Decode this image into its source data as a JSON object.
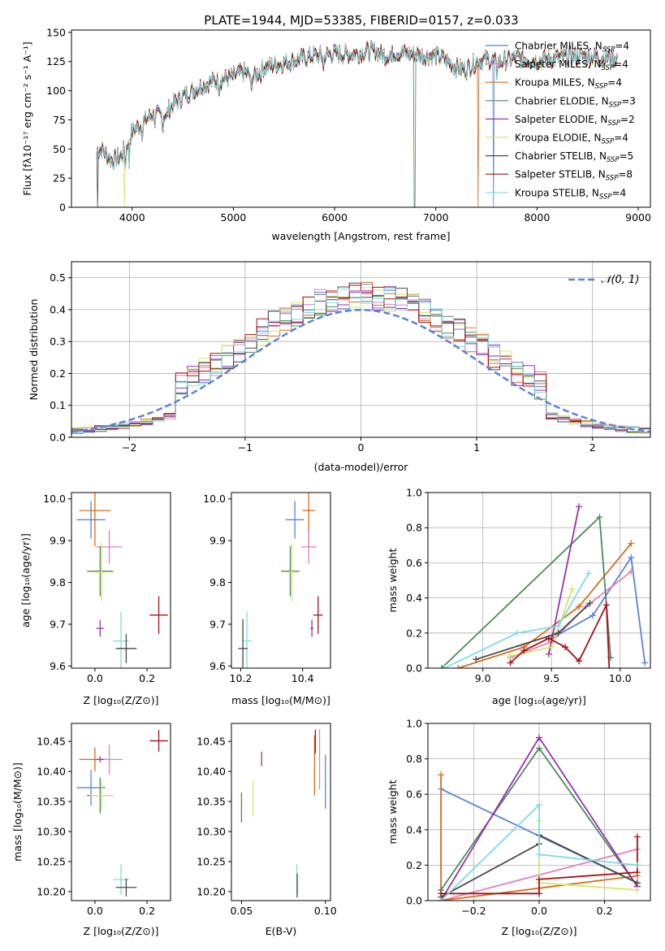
{
  "title": "PLATE=1944, MJD=53385, FIBERID=0157, z=0.033",
  "colors": {
    "Chabrier MILES": "#5b84d8",
    "Salpeter MILES": "#e37fbf",
    "Kroupa MILES": "#d86c1a",
    "Chabrier ELODIE": "#4f8a5b",
    "Salpeter ELODIE": "#9a2fb5",
    "Kroupa ELODIE": "#d8e56a",
    "Chabrier STELIB": "#4a4a4a",
    "Salpeter STELIB": "#a6111a",
    "Kroupa STELIB": "#7fdce0",
    "normal": "#5b84d8"
  },
  "chart_data": [
    {
      "id": "spectrum",
      "type": "line",
      "title": "PLATE=1944, MJD=53385, FIBERID=0157, z=0.033",
      "xlabel": "wavelength [Angstrom, rest frame]",
      "ylabel": "Flux [f",
      "ylabel_full": "Flux [fλ10⁻¹⁷ erg cm⁻² s⁻¹ A⁻¹]",
      "xlim": [
        3400,
        9120
      ],
      "ylim": [
        0,
        152
      ],
      "xticks": [
        4000,
        5000,
        6000,
        7000,
        8000,
        9000
      ],
      "yticks": [
        0,
        25,
        50,
        75,
        100,
        125,
        150
      ],
      "legend_position": "right",
      "series": [
        {
          "name": "Chabrier MILES",
          "label_main": "Chabrier MILES, N",
          "sub": "SSP",
          "n": "=4"
        },
        {
          "name": "Salpeter MILES",
          "label_main": "Salpeter MILES, N",
          "sub": "SSP",
          "n": "=4"
        },
        {
          "name": "Kroupa MILES",
          "label_main": "Kroupa MILES, N",
          "sub": "SSP",
          "n": "=4"
        },
        {
          "name": "Chabrier ELODIE",
          "label_main": "Chabrier ELODIE, N",
          "sub": "SSP",
          "n": "=3"
        },
        {
          "name": "Salpeter ELODIE",
          "label_main": "Salpeter ELODIE, N",
          "sub": "SSP",
          "n": "=2"
        },
        {
          "name": "Kroupa ELODIE",
          "label_main": "Kroupa ELODIE, N",
          "sub": "SSP",
          "n": "=4"
        },
        {
          "name": "Chabrier STELIB",
          "label_main": "Chabrier STELIB, N",
          "sub": "SSP",
          "n": "=5"
        },
        {
          "name": "Salpeter STELIB",
          "label_main": "Salpeter STELIB, N",
          "sub": "SSP",
          "n": "=8"
        },
        {
          "name": "Kroupa STELIB",
          "label_main": "Kroupa STELIB, N",
          "sub": "SSP",
          "n": "=4"
        }
      ],
      "continuum": [
        [
          3650,
          48
        ],
        [
          3700,
          50
        ],
        [
          3800,
          40
        ],
        [
          3900,
          45
        ],
        [
          4000,
          65
        ],
        [
          4100,
          72
        ],
        [
          4200,
          80
        ],
        [
          4300,
          78
        ],
        [
          4400,
          88
        ],
        [
          4500,
          95
        ],
        [
          4600,
          100
        ],
        [
          4700,
          105
        ],
        [
          4800,
          108
        ],
        [
          4900,
          110
        ],
        [
          5000,
          112
        ],
        [
          5100,
          116
        ],
        [
          5200,
          112
        ],
        [
          5300,
          120
        ],
        [
          5400,
          122
        ],
        [
          5500,
          124
        ],
        [
          5600,
          126
        ],
        [
          5700,
          128
        ],
        [
          5800,
          130
        ],
        [
          5900,
          130
        ],
        [
          6000,
          132
        ],
        [
          6100,
          131
        ],
        [
          6200,
          132
        ],
        [
          6300,
          133
        ],
        [
          6400,
          134
        ],
        [
          6500,
          130
        ],
        [
          6600,
          133
        ],
        [
          6700,
          132
        ],
        [
          6800,
          131
        ],
        [
          6900,
          130
        ],
        [
          7000,
          130
        ],
        [
          7100,
          126
        ],
        [
          7200,
          120
        ],
        [
          7300,
          118
        ],
        [
          7400,
          125
        ],
        [
          7500,
          127
        ],
        [
          7600,
          124
        ],
        [
          7700,
          126
        ],
        [
          7800,
          128
        ],
        [
          7900,
          127
        ],
        [
          8000,
          126
        ],
        [
          8200,
          128
        ],
        [
          8400,
          130
        ],
        [
          8600,
          129
        ],
        [
          8800,
          128
        ]
      ],
      "absorption_lines": [
        [
          3934,
          20
        ],
        [
          3969,
          22
        ],
        [
          4102,
          10
        ],
        [
          4227,
          6
        ],
        [
          4305,
          10
        ],
        [
          4340,
          8
        ],
        [
          4861,
          7
        ],
        [
          5175,
          18
        ],
        [
          5270,
          6
        ],
        [
          5890,
          12
        ],
        [
          6563,
          6
        ],
        [
          7600,
          10
        ]
      ],
      "drops": [
        {
          "series": "Kroupa ELODIE",
          "x": 3920
        },
        {
          "series": "Chabrier ELODIE",
          "x": 6790
        },
        {
          "series": "Kroupa MILES",
          "x": 7420
        },
        {
          "series": "Chabrier MILES",
          "x": 7570
        },
        {
          "series": "Chabrier STELIB",
          "x": 3660
        }
      ]
    },
    {
      "id": "residuals",
      "type": "histogram",
      "xlabel": "(data-model)/error",
      "ylabel": "Normed distribution",
      "xlim": [
        -2.5,
        2.5
      ],
      "ylim": [
        0,
        0.55
      ],
      "xticks": [
        -2,
        -1,
        0,
        1,
        2
      ],
      "yticks": [
        0.0,
        0.1,
        0.2,
        0.3,
        0.4,
        0.5
      ],
      "legend_label": "𝒩(0, 1)",
      "legend_position": "top-right",
      "grid": true,
      "bin_width": 0.1
    },
    {
      "id": "z_age",
      "type": "scatter",
      "xlabel": "Z [log",
      "xlabel_full": "Z [log₁₀(Z/Z⊙)]",
      "ylabel": "age [log₁₀(age/yr)]",
      "xlim": [
        -0.09,
        0.29
      ],
      "ylim": [
        9.595,
        10.015
      ],
      "xticks": [
        0.0,
        0.2
      ],
      "yticks": [
        9.6,
        9.7,
        9.8,
        9.9,
        10.0
      ],
      "points": [
        {
          "series": "Chabrier MILES",
          "x": -0.015,
          "y": 9.95,
          "xerr": 0.055,
          "yerr": 0.045
        },
        {
          "series": "Kroupa MILES",
          "x": 0.0,
          "y": 9.972,
          "xerr": 0.06,
          "yerr": 0.085
        },
        {
          "series": "Salpeter MILES",
          "x": 0.055,
          "y": 9.885,
          "xerr": 0.05,
          "yerr": 0.04
        },
        {
          "series": "Chabrier ELODIE",
          "x": 0.02,
          "y": 9.827,
          "xerr": 0.05,
          "yerr": 0.06
        },
        {
          "series": "Kroupa ELODIE",
          "x": 0.025,
          "y": 9.825,
          "xerr": 0.045,
          "yerr": 0.07
        },
        {
          "series": "Salpeter ELODIE",
          "x": 0.02,
          "y": 9.69,
          "xerr": 0.015,
          "yerr": 0.02
        },
        {
          "series": "Kroupa STELIB",
          "x": 0.1,
          "y": 9.66,
          "xerr": 0.03,
          "yerr": 0.07
        },
        {
          "series": "Chabrier STELIB",
          "x": 0.12,
          "y": 9.642,
          "xerr": 0.04,
          "yerr": 0.035
        },
        {
          "series": "Salpeter STELIB",
          "x": 0.245,
          "y": 9.722,
          "xerr": 0.035,
          "yerr": 0.045
        }
      ]
    },
    {
      "id": "mass_age",
      "type": "scatter",
      "xlabel": "mass [log₁₀(M/M⊙)]",
      "xlim": [
        10.17,
        10.49
      ],
      "ylim": [
        9.595,
        10.015
      ],
      "xticks": [
        10.2,
        10.4
      ],
      "yticks": [
        9.6,
        9.7,
        9.8,
        9.9,
        10.0
      ],
      "points": [
        {
          "series": "Chabrier MILES",
          "x": 10.375,
          "y": 9.95,
          "xerr": 0.03,
          "yerr": 0.045
        },
        {
          "series": "Kroupa MILES",
          "x": 10.42,
          "y": 9.972,
          "xerr": 0.02,
          "yerr": 0.085
        },
        {
          "series": "Salpeter MILES",
          "x": 10.42,
          "y": 9.885,
          "xerr": 0.025,
          "yerr": 0.04
        },
        {
          "series": "Chabrier ELODIE",
          "x": 10.36,
          "y": 9.827,
          "xerr": 0.03,
          "yerr": 0.06
        },
        {
          "series": "Kroupa ELODIE",
          "x": 10.365,
          "y": 9.825,
          "xerr": 0.02,
          "yerr": 0.07
        },
        {
          "series": "Salpeter ELODIE",
          "x": 10.43,
          "y": 9.69,
          "xerr": 0.005,
          "yerr": 0.02
        },
        {
          "series": "Kroupa STELIB",
          "x": 10.22,
          "y": 9.66,
          "xerr": 0.015,
          "yerr": 0.07
        },
        {
          "series": "Chabrier STELIB",
          "x": 10.207,
          "y": 9.642,
          "xerr": 0.015,
          "yerr": 0.07
        },
        {
          "series": "Salpeter STELIB",
          "x": 10.45,
          "y": 9.722,
          "xerr": 0.015,
          "yerr": 0.045
        }
      ]
    },
    {
      "id": "age_weight",
      "type": "line",
      "xlabel": "age [log₁₀(age/yr)]",
      "ylabel": "mass weight",
      "xlim": [
        8.6,
        10.22
      ],
      "ylim": [
        0,
        1.0
      ],
      "xticks": [
        9.0,
        9.5,
        10.0
      ],
      "yticks": [
        0.0,
        0.2,
        0.4,
        0.6,
        0.8,
        1.0
      ],
      "grid": true,
      "series": [
        {
          "name": "Chabrier MILES",
          "x": [
            9.5,
            9.8,
            10.08,
            10.18
          ],
          "y": [
            0.17,
            0.3,
            0.63,
            0.03
          ]
        },
        {
          "name": "Salpeter MILES",
          "x": [
            9.2,
            9.5,
            9.75,
            10.08
          ],
          "y": [
            0.06,
            0.15,
            0.35,
            0.55
          ]
        },
        {
          "name": "Kroupa MILES",
          "x": [
            8.82,
            9.3,
            9.7,
            10.08
          ],
          "y": [
            0.0,
            0.12,
            0.35,
            0.71
          ]
        },
        {
          "name": "Chabrier ELODIE",
          "x": [
            8.7,
            9.85,
            9.93
          ],
          "y": [
            0.0,
            0.86,
            0.06
          ]
        },
        {
          "name": "Salpeter ELODIE",
          "x": [
            9.48,
            9.7
          ],
          "y": [
            0.08,
            0.92
          ]
        },
        {
          "name": "Kroupa ELODIE",
          "x": [
            9.2,
            9.5,
            9.65
          ],
          "y": [
            0.07,
            0.12,
            0.45
          ]
        },
        {
          "name": "Chabrier STELIB",
          "x": [
            8.95,
            9.55,
            9.78
          ],
          "y": [
            0.05,
            0.2,
            0.37
          ]
        },
        {
          "name": "Salpeter STELIB",
          "x": [
            9.2,
            9.3,
            9.48,
            9.6,
            9.7,
            9.9,
            9.92
          ],
          "y": [
            0.03,
            0.1,
            0.17,
            0.12,
            0.04,
            0.36,
            0.0
          ]
        },
        {
          "name": "Kroupa STELIB",
          "x": [
            8.72,
            9.25,
            9.55,
            9.77
          ],
          "y": [
            0.0,
            0.2,
            0.24,
            0.54
          ]
        }
      ]
    },
    {
      "id": "z_mass",
      "type": "scatter",
      "xlabel": "Z [log₁₀(Z/Z⊙)]",
      "ylabel": "mass [log₁₀(M/M⊙)]",
      "xlim": [
        -0.09,
        0.29
      ],
      "ylim": [
        10.185,
        10.48
      ],
      "xticks": [
        0.0,
        0.2
      ],
      "yticks": [
        10.2,
        10.25,
        10.3,
        10.35,
        10.4,
        10.45
      ],
      "points": [
        {
          "series": "Chabrier MILES",
          "x": -0.015,
          "y": 10.373,
          "xerr": 0.055,
          "yerr": 0.03
        },
        {
          "series": "Kroupa MILES",
          "x": 0.0,
          "y": 10.42,
          "xerr": 0.06,
          "yerr": 0.02
        },
        {
          "series": "Salpeter MILES",
          "x": 0.055,
          "y": 10.42,
          "xerr": 0.05,
          "yerr": 0.025
        },
        {
          "series": "Salpeter ELODIE",
          "x": 0.02,
          "y": 10.42,
          "xerr": 0.015,
          "yerr": 0.005
        },
        {
          "series": "Chabrier ELODIE",
          "x": 0.02,
          "y": 10.36,
          "xerr": 0.05,
          "yerr": 0.03
        },
        {
          "series": "Kroupa ELODIE",
          "x": 0.025,
          "y": 10.36,
          "xerr": 0.045,
          "yerr": 0.025
        },
        {
          "series": "Kroupa STELIB",
          "x": 0.1,
          "y": 10.22,
          "xerr": 0.03,
          "yerr": 0.025
        },
        {
          "series": "Chabrier STELIB",
          "x": 0.12,
          "y": 10.207,
          "xerr": 0.04,
          "yerr": 0.015
        },
        {
          "series": "Salpeter STELIB",
          "x": 0.245,
          "y": 10.451,
          "xerr": 0.035,
          "yerr": 0.018
        }
      ]
    },
    {
      "id": "ebv_mass",
      "type": "scatter",
      "xlabel": "E(B-V)",
      "xlim": [
        0.044,
        0.103
      ],
      "ylim": [
        10.185,
        10.48
      ],
      "xticks": [
        0.05,
        0.1
      ],
      "yticks": [
        10.2,
        10.25,
        10.3,
        10.35,
        10.4,
        10.45
      ],
      "points": [
        {
          "series": "Chabrier ELODIE",
          "x": 0.05,
          "y": 10.34,
          "yerr": 0.025
        },
        {
          "series": "Kroupa ELODIE",
          "x": 0.057,
          "y": 10.355,
          "yerr": 0.03
        },
        {
          "series": "Salpeter ELODIE",
          "x": 0.062,
          "y": 10.421,
          "yerr": 0.012
        },
        {
          "series": "Kroupa STELIB",
          "x": 0.083,
          "y": 10.22,
          "yerr": 0.025
        },
        {
          "series": "Chabrier STELIB",
          "x": 0.0832,
          "y": 10.21,
          "yerr": 0.02
        },
        {
          "series": "Kroupa MILES",
          "x": 0.0935,
          "y": 10.41,
          "yerr": 0.05
        },
        {
          "series": "Salpeter STELIB",
          "x": 0.094,
          "y": 10.45,
          "yerr": 0.02
        },
        {
          "series": "Salpeter MILES",
          "x": 0.0965,
          "y": 10.42,
          "yerr": 0.05
        },
        {
          "series": "Chabrier MILES",
          "x": 0.1,
          "y": 10.383,
          "yerr": 0.045
        }
      ]
    },
    {
      "id": "z_weight",
      "type": "line",
      "xlabel": "Z [log₁₀(Z/Z⊙)]",
      "ylabel": "mass weight",
      "xlim": [
        -0.34,
        0.34
      ],
      "ylim": [
        0,
        1.0
      ],
      "xticks": [
        -0.2,
        0.0,
        0.2
      ],
      "yticks": [
        0.0,
        0.2,
        0.4,
        0.6,
        0.8,
        1.0
      ],
      "grid": true,
      "series": [
        {
          "name": "Chabrier MILES",
          "x": [
            -0.3,
            0.3
          ],
          "y": [
            0.63,
            0.1
          ]
        },
        {
          "name": "Salpeter MILES",
          "x": [
            -0.3,
            0.3
          ],
          "y": [
            0.0,
            0.29
          ]
        },
        {
          "name": "Kroupa MILES",
          "x": [
            -0.3,
            -0.3,
            0.0,
            0.3
          ],
          "y": [
            0.71,
            0.0,
            0.07,
            0.14
          ]
        },
        {
          "name": "Chabrier ELODIE",
          "x": [
            -0.3,
            0.0,
            0.3
          ],
          "y": [
            0.06,
            0.86,
            0.08
          ]
        },
        {
          "name": "Salpeter ELODIE",
          "x": [
            -0.3,
            0.0,
            0.3
          ],
          "y": [
            0.0,
            0.92,
            0.08
          ]
        },
        {
          "name": "Kroupa ELODIE",
          "x": [
            0.0,
            0.0,
            0.3
          ],
          "y": [
            0.45,
            0.1,
            0.06
          ]
        },
        {
          "name": "Chabrier STELIB",
          "x": [
            -0.3,
            0.0,
            0.0,
            0.3
          ],
          "y": [
            0.02,
            0.32,
            0.37,
            0.1
          ]
        },
        {
          "name": "Salpeter STELIB",
          "x": [
            -0.3,
            0.0,
            0.0,
            0.3,
            0.3
          ],
          "y": [
            0.04,
            0.04,
            0.12,
            0.16,
            0.36
          ]
        },
        {
          "name": "Kroupa STELIB",
          "x": [
            -0.3,
            0.0,
            0.0,
            0.3
          ],
          "y": [
            0.0,
            0.54,
            0.26,
            0.2
          ]
        }
      ]
    }
  ]
}
